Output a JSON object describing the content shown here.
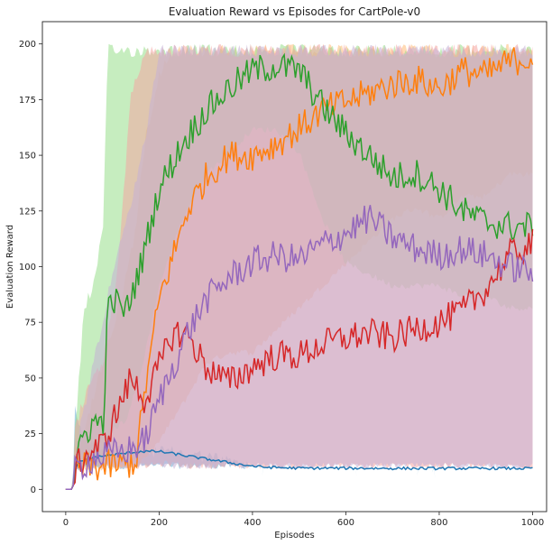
{
  "chart_data": {
    "type": "line",
    "title": "Evaluation Reward vs Episodes for CartPole-v0",
    "xlabel": "Episodes",
    "ylabel": "Evaluation Reward",
    "xlim": [
      -50,
      1030
    ],
    "ylim": [
      -10,
      210
    ],
    "xticks": [
      0,
      200,
      400,
      600,
      800,
      1000
    ],
    "yticks": [
      0,
      25,
      50,
      75,
      100,
      125,
      150,
      175,
      200
    ],
    "grid": false,
    "legend": "none",
    "series": [
      {
        "color": "#1f77b4",
        "band_color": "#6baed6",
        "x": [
          0,
          15,
          20,
          30,
          50,
          80,
          120,
          160,
          200,
          260,
          320,
          380,
          420,
          500,
          600,
          700,
          800,
          900,
          1000
        ],
        "mean": [
          0,
          0,
          9,
          12,
          14,
          15,
          16,
          17,
          17,
          15,
          13,
          11,
          10,
          9.5,
          9.5,
          9.4,
          9.4,
          9.4,
          9.4
        ],
        "lo": [
          0,
          0,
          8,
          9,
          9,
          9,
          9,
          9,
          9,
          9,
          9,
          9,
          9,
          9,
          9,
          9,
          9,
          9,
          9
        ],
        "hi": [
          0,
          0,
          42,
          30,
          25,
          22,
          22,
          21,
          20,
          19,
          17,
          14,
          11,
          10,
          10,
          10,
          10,
          10,
          10
        ]
      },
      {
        "color": "#ff7f0e",
        "band_color": "#ffbb78",
        "x": [
          0,
          15,
          20,
          40,
          80,
          120,
          150,
          170,
          200,
          230,
          260,
          300,
          350,
          400,
          450,
          500,
          550,
          600,
          650,
          700,
          750,
          800,
          850,
          900,
          950,
          1000
        ],
        "mean": [
          0,
          0,
          9,
          10,
          10,
          11,
          12,
          45,
          85,
          105,
          125,
          140,
          150,
          150,
          155,
          162,
          170,
          174,
          178,
          182,
          184,
          180,
          188,
          186,
          192,
          194
        ],
        "lo": [
          0,
          0,
          8,
          8,
          8,
          9,
          9,
          12,
          20,
          30,
          40,
          55,
          60,
          60,
          70,
          80,
          90,
          100,
          110,
          120,
          125,
          120,
          130,
          130,
          140,
          140
        ],
        "hi": [
          0,
          0,
          20,
          30,
          60,
          90,
          120,
          160,
          190,
          200,
          200,
          200,
          200,
          200,
          200,
          200,
          200,
          200,
          200,
          200,
          200,
          200,
          200,
          200,
          200,
          200
        ]
      },
      {
        "color": "#2ca02c",
        "band_color": "#98df8a",
        "x": [
          0,
          15,
          20,
          40,
          60,
          80,
          90,
          100,
          130,
          160,
          200,
          250,
          300,
          350,
          400,
          450,
          500,
          550,
          600,
          650,
          700,
          750,
          800,
          850,
          900,
          950,
          1000
        ],
        "mean": [
          0,
          0,
          9,
          25,
          30,
          30,
          80,
          85,
          80,
          100,
          135,
          155,
          170,
          180,
          188,
          190,
          188,
          172,
          160,
          150,
          140,
          142,
          135,
          125,
          120,
          118,
          118
        ],
        "lo": [
          0,
          0,
          8,
          9,
          9,
          9,
          20,
          25,
          30,
          50,
          90,
          120,
          140,
          150,
          160,
          160,
          150,
          120,
          100,
          95,
          90,
          90,
          90,
          85,
          85,
          80,
          80
        ],
        "hi": [
          0,
          0,
          30,
          85,
          95,
          120,
          200,
          200,
          200,
          200,
          200,
          200,
          200,
          200,
          200,
          200,
          200,
          200,
          200,
          200,
          200,
          200,
          200,
          200,
          200,
          200,
          200
        ]
      },
      {
        "color": "#d62728",
        "band_color": "#f4a6a3",
        "x": [
          0,
          15,
          20,
          40,
          80,
          110,
          140,
          170,
          200,
          230,
          260,
          300,
          350,
          400,
          450,
          500,
          550,
          600,
          650,
          700,
          750,
          800,
          850,
          900,
          950,
          1000
        ],
        "mean": [
          0,
          0,
          9,
          15,
          20,
          35,
          50,
          40,
          55,
          70,
          70,
          55,
          48,
          55,
          60,
          60,
          65,
          68,
          70,
          68,
          72,
          75,
          80,
          90,
          105,
          110
        ],
        "lo": [
          0,
          0,
          8,
          9,
          9,
          9,
          9,
          9,
          10,
          10,
          9,
          9,
          9,
          9,
          9,
          9,
          9,
          9,
          9,
          9,
          9,
          9,
          9,
          9,
          9,
          9
        ],
        "hi": [
          0,
          0,
          30,
          45,
          60,
          100,
          180,
          200,
          200,
          200,
          200,
          200,
          200,
          200,
          200,
          200,
          200,
          200,
          200,
          200,
          200,
          200,
          200,
          200,
          200,
          200
        ]
      },
      {
        "color": "#9467bd",
        "band_color": "#c5b0d5",
        "x": [
          0,
          15,
          20,
          60,
          100,
          140,
          170,
          200,
          230,
          260,
          300,
          350,
          400,
          450,
          500,
          550,
          600,
          650,
          700,
          750,
          800,
          850,
          900,
          950,
          1000
        ],
        "mean": [
          0,
          0,
          9,
          14,
          16,
          18,
          22,
          40,
          55,
          70,
          85,
          95,
          102,
          105,
          103,
          110,
          115,
          122,
          113,
          108,
          105,
          108,
          105,
          100,
          98
        ],
        "lo": [
          0,
          0,
          8,
          9,
          9,
          9,
          9,
          9,
          9,
          9,
          9,
          9,
          9,
          9,
          9,
          9,
          9,
          9,
          9,
          9,
          9,
          9,
          9,
          9,
          9
        ],
        "hi": [
          0,
          0,
          20,
          60,
          100,
          130,
          160,
          200,
          200,
          200,
          200,
          200,
          200,
          200,
          200,
          200,
          200,
          200,
          200,
          200,
          200,
          200,
          200,
          200,
          200
        ]
      }
    ]
  }
}
